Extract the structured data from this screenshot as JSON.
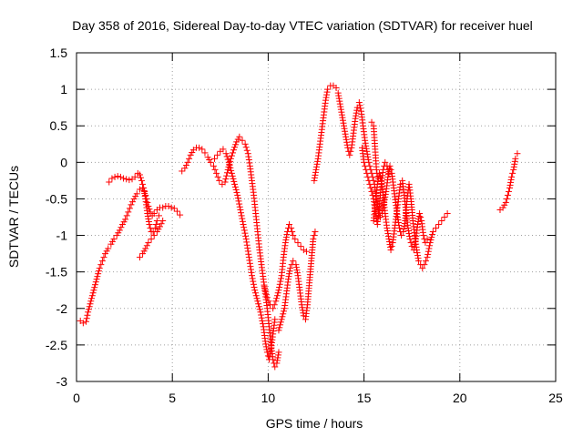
{
  "chart_data": {
    "type": "scatter",
    "title": "Day 358 of 2016, Sidereal Day-to-day VTEC variation (SDTVAR) for receiver huel",
    "xlabel": "GPS time / hours",
    "ylabel": "SDTVAR / TECUs",
    "xlim": [
      0,
      25
    ],
    "ylim": [
      -3,
      1.5
    ],
    "x_ticks": [
      0,
      5,
      10,
      15,
      20,
      25
    ],
    "x_tick_labels": [
      "0",
      "5",
      "10",
      "15",
      "20",
      "25"
    ],
    "y_ticks": [
      -3,
      -2.5,
      -2,
      -1.5,
      -1,
      -0.5,
      0,
      0.5,
      1,
      1.5
    ],
    "y_tick_labels": [
      "-3",
      "-2.5",
      "-2",
      "-1.5",
      "-1",
      "-0.5",
      "0",
      "0.5",
      "1",
      "1.5"
    ],
    "grid": true,
    "marker": "+",
    "color": "#ff0000",
    "series": [
      {
        "points": [
          [
            0.2,
            -2.17
          ],
          [
            0.35,
            -2.2
          ],
          [
            0.5,
            -2.18
          ],
          [
            0.6,
            -2.05
          ],
          [
            0.75,
            -1.9
          ],
          [
            0.9,
            -1.75
          ],
          [
            1.05,
            -1.6
          ],
          [
            1.2,
            -1.45
          ],
          [
            1.35,
            -1.35
          ],
          [
            1.5,
            -1.25
          ],
          [
            1.65,
            -1.18
          ],
          [
            1.8,
            -1.12
          ],
          [
            1.95,
            -1.05
          ],
          [
            2.1,
            -1.0
          ],
          [
            2.25,
            -0.93
          ],
          [
            2.4,
            -0.85
          ],
          [
            2.55,
            -0.78
          ],
          [
            2.7,
            -0.68
          ],
          [
            2.85,
            -0.58
          ],
          [
            3.0,
            -0.5
          ],
          [
            3.15,
            -0.43
          ],
          [
            3.3,
            -0.37
          ],
          [
            3.45,
            -0.35
          ],
          [
            3.55,
            -0.4
          ],
          [
            3.65,
            -0.5
          ],
          [
            3.75,
            -0.6
          ],
          [
            3.85,
            -0.68
          ],
          [
            3.95,
            -0.73
          ],
          [
            4.05,
            -0.7
          ],
          [
            4.2,
            -0.65
          ],
          [
            4.35,
            -0.62
          ],
          [
            4.5,
            -0.62
          ],
          [
            4.65,
            -0.6
          ],
          [
            4.8,
            -0.6
          ],
          [
            4.95,
            -0.62
          ],
          [
            5.1,
            -0.63
          ],
          [
            5.25,
            -0.67
          ],
          [
            5.4,
            -0.72
          ]
        ]
      },
      {
        "points": [
          [
            1.7,
            -0.27
          ],
          [
            1.85,
            -0.22
          ],
          [
            2.0,
            -0.2
          ],
          [
            2.15,
            -0.19
          ],
          [
            2.3,
            -0.2
          ],
          [
            2.45,
            -0.22
          ],
          [
            2.6,
            -0.23
          ],
          [
            2.75,
            -0.24
          ],
          [
            2.9,
            -0.23
          ],
          [
            3.05,
            -0.2
          ],
          [
            3.2,
            -0.15
          ],
          [
            3.3,
            -0.17
          ],
          [
            3.4,
            -0.25
          ],
          [
            3.5,
            -0.35
          ],
          [
            3.6,
            -0.5
          ],
          [
            3.7,
            -0.7
          ],
          [
            3.8,
            -0.85
          ],
          [
            3.9,
            -0.95
          ],
          [
            4.0,
            -0.95
          ],
          [
            4.1,
            -0.9
          ],
          [
            4.2,
            -0.8
          ],
          [
            4.3,
            -0.73
          ]
        ]
      },
      {
        "points": [
          [
            3.3,
            -1.3
          ],
          [
            3.45,
            -1.25
          ],
          [
            3.6,
            -1.18
          ],
          [
            3.75,
            -1.1
          ],
          [
            3.9,
            -1.05
          ],
          [
            4.05,
            -1.0
          ],
          [
            4.2,
            -0.95
          ],
          [
            4.35,
            -0.88
          ],
          [
            4.5,
            -0.8
          ]
        ]
      },
      {
        "points": [
          [
            5.5,
            -0.12
          ],
          [
            5.65,
            -0.08
          ],
          [
            5.8,
            0.0
          ],
          [
            5.95,
            0.1
          ],
          [
            6.1,
            0.17
          ],
          [
            6.25,
            0.2
          ],
          [
            6.4,
            0.2
          ],
          [
            6.55,
            0.18
          ],
          [
            6.7,
            0.13
          ],
          [
            6.85,
            0.07
          ],
          [
            7.0,
            0.0
          ],
          [
            7.15,
            -0.05
          ],
          [
            7.3,
            -0.15
          ],
          [
            7.45,
            -0.25
          ],
          [
            7.6,
            -0.3
          ],
          [
            7.75,
            -0.27
          ],
          [
            7.9,
            -0.1
          ],
          [
            8.05,
            0.05
          ],
          [
            8.2,
            0.17
          ],
          [
            8.35,
            0.28
          ],
          [
            8.5,
            0.35
          ],
          [
            8.65,
            0.3
          ],
          [
            8.8,
            0.25
          ],
          [
            8.95,
            0.12
          ],
          [
            9.05,
            -0.05
          ],
          [
            9.15,
            -0.25
          ],
          [
            9.25,
            -0.45
          ],
          [
            9.35,
            -0.7
          ],
          [
            9.45,
            -0.95
          ],
          [
            9.55,
            -1.2
          ],
          [
            9.65,
            -1.4
          ],
          [
            9.75,
            -1.6
          ],
          [
            9.85,
            -1.8
          ],
          [
            9.95,
            -2.0
          ],
          [
            10.05,
            -2.25
          ],
          [
            10.15,
            -2.5
          ],
          [
            10.25,
            -2.7
          ],
          [
            10.35,
            -2.8
          ],
          [
            10.45,
            -2.75
          ],
          [
            10.55,
            -2.6
          ]
        ]
      },
      {
        "points": [
          [
            7.2,
            0.05
          ],
          [
            7.35,
            0.1
          ],
          [
            7.5,
            0.15
          ],
          [
            7.65,
            0.18
          ],
          [
            7.8,
            0.12
          ],
          [
            7.95,
            0.0
          ],
          [
            8.1,
            -0.15
          ],
          [
            8.25,
            -0.3
          ],
          [
            8.4,
            -0.45
          ],
          [
            8.55,
            -0.65
          ],
          [
            8.7,
            -0.85
          ],
          [
            8.85,
            -1.05
          ],
          [
            9.0,
            -1.3
          ],
          [
            9.15,
            -1.55
          ],
          [
            9.3,
            -1.75
          ],
          [
            9.45,
            -1.9
          ],
          [
            9.6,
            -2.05
          ],
          [
            9.75,
            -2.25
          ],
          [
            9.85,
            -2.45
          ],
          [
            9.95,
            -2.6
          ],
          [
            10.05,
            -2.7
          ],
          [
            10.15,
            -2.55
          ],
          [
            10.25,
            -2.35
          ],
          [
            10.35,
            -2.15
          ]
        ]
      },
      {
        "points": [
          [
            9.8,
            -1.7
          ],
          [
            9.95,
            -1.85
          ],
          [
            10.1,
            -1.95
          ],
          [
            10.25,
            -2.0
          ],
          [
            10.4,
            -1.9
          ],
          [
            10.55,
            -1.75
          ],
          [
            10.7,
            -1.55
          ],
          [
            10.8,
            -1.3
          ],
          [
            10.9,
            -1.1
          ],
          [
            11.0,
            -0.95
          ],
          [
            11.1,
            -0.85
          ],
          [
            11.2,
            -0.9
          ],
          [
            11.3,
            -1.0
          ],
          [
            11.4,
            -1.05
          ],
          [
            11.55,
            -1.1
          ],
          [
            11.7,
            -1.15
          ],
          [
            11.85,
            -1.2
          ],
          [
            12.0,
            -1.22
          ]
        ]
      },
      {
        "points": [
          [
            10.55,
            -2.3
          ],
          [
            10.7,
            -2.15
          ],
          [
            10.85,
            -2.0
          ],
          [
            10.95,
            -1.8
          ],
          [
            11.05,
            -1.6
          ],
          [
            11.15,
            -1.45
          ],
          [
            11.3,
            -1.35
          ],
          [
            11.45,
            -1.4
          ],
          [
            11.55,
            -1.55
          ],
          [
            11.65,
            -1.75
          ],
          [
            11.75,
            -1.95
          ],
          [
            11.85,
            -2.1
          ],
          [
            11.95,
            -2.15
          ],
          [
            12.05,
            -1.95
          ],
          [
            12.15,
            -1.65
          ],
          [
            12.25,
            -1.35
          ],
          [
            12.35,
            -1.05
          ],
          [
            12.45,
            -0.95
          ]
        ]
      },
      {
        "points": [
          [
            12.4,
            -0.25
          ],
          [
            12.5,
            -0.1
          ],
          [
            12.6,
            0.05
          ],
          [
            12.7,
            0.25
          ],
          [
            12.8,
            0.45
          ],
          [
            12.9,
            0.65
          ],
          [
            13.0,
            0.85
          ],
          [
            13.1,
            1.0
          ],
          [
            13.25,
            1.05
          ],
          [
            13.4,
            1.05
          ],
          [
            13.55,
            1.02
          ],
          [
            13.65,
            0.95
          ],
          [
            13.75,
            0.8
          ],
          [
            13.85,
            0.65
          ],
          [
            13.95,
            0.5
          ],
          [
            14.05,
            0.35
          ],
          [
            14.15,
            0.2
          ],
          [
            14.25,
            0.1
          ],
          [
            14.35,
            0.2
          ],
          [
            14.45,
            0.4
          ],
          [
            14.55,
            0.6
          ],
          [
            14.65,
            0.75
          ],
          [
            14.75,
            0.82
          ],
          [
            14.85,
            0.7
          ],
          [
            14.95,
            0.5
          ],
          [
            15.05,
            0.3
          ],
          [
            15.15,
            0.15
          ],
          [
            15.25,
            0.0
          ],
          [
            15.35,
            -0.1
          ],
          [
            15.45,
            -0.2
          ],
          [
            15.55,
            -0.3
          ],
          [
            15.65,
            -0.5
          ],
          [
            15.75,
            -0.65
          ],
          [
            15.85,
            -0.75
          ],
          [
            15.95,
            -0.7
          ],
          [
            16.05,
            -0.55
          ],
          [
            16.15,
            -0.4
          ],
          [
            16.25,
            -0.2
          ],
          [
            16.35,
            -0.05
          ],
          [
            16.45,
            -0.15
          ],
          [
            16.55,
            -0.35
          ],
          [
            16.65,
            -0.55
          ],
          [
            16.75,
            -0.75
          ],
          [
            16.85,
            -0.9
          ],
          [
            16.95,
            -1.0
          ],
          [
            17.05,
            -0.95
          ],
          [
            17.15,
            -0.8
          ],
          [
            17.25,
            -0.5
          ],
          [
            17.35,
            -0.3
          ],
          [
            17.45,
            -0.5
          ],
          [
            17.55,
            -0.8
          ],
          [
            17.65,
            -1.0
          ],
          [
            17.75,
            -1.2
          ],
          [
            17.85,
            -1.35
          ],
          [
            17.95,
            -1.4
          ],
          [
            18.05,
            -1.45
          ],
          [
            18.15,
            -1.4
          ],
          [
            18.3,
            -1.3
          ],
          [
            18.45,
            -1.1
          ],
          [
            18.6,
            -0.95
          ],
          [
            18.75,
            -0.9
          ],
          [
            18.9,
            -0.85
          ],
          [
            19.05,
            -0.8
          ],
          [
            19.2,
            -0.75
          ],
          [
            19.35,
            -0.7
          ]
        ]
      },
      {
        "points": [
          [
            15.5,
            -0.8
          ],
          [
            15.6,
            -0.55
          ],
          [
            15.7,
            -0.3
          ],
          [
            15.8,
            -0.15
          ],
          [
            15.9,
            -0.25
          ],
          [
            16.0,
            -0.45
          ],
          [
            16.1,
            -0.7
          ],
          [
            16.2,
            -0.9
          ],
          [
            16.3,
            -1.05
          ],
          [
            16.4,
            -1.2
          ],
          [
            16.5,
            -1.1
          ],
          [
            16.6,
            -0.9
          ],
          [
            16.7,
            -0.7
          ],
          [
            16.8,
            -0.5
          ],
          [
            16.9,
            -0.3
          ],
          [
            17.0,
            -0.25
          ],
          [
            17.1,
            -0.45
          ],
          [
            17.2,
            -0.7
          ],
          [
            17.3,
            -0.9
          ],
          [
            17.4,
            -1.05
          ],
          [
            17.5,
            -1.15
          ],
          [
            17.6,
            -1.2
          ],
          [
            17.7,
            -1.05
          ],
          [
            17.8,
            -0.85
          ],
          [
            17.9,
            -0.7
          ],
          [
            18.0,
            -0.8
          ],
          [
            18.1,
            -1.0
          ],
          [
            18.2,
            -1.1
          ],
          [
            18.3,
            -1.05
          ]
        ]
      },
      {
        "points": [
          [
            14.9,
            0.2
          ],
          [
            15.0,
            0.0
          ],
          [
            15.1,
            -0.1
          ],
          [
            15.2,
            -0.2
          ],
          [
            15.3,
            -0.3
          ],
          [
            15.4,
            -0.4
          ],
          [
            15.5,
            -0.5
          ],
          [
            15.6,
            -0.7
          ],
          [
            15.7,
            -0.85
          ],
          [
            15.8,
            -0.6
          ],
          [
            15.9,
            -0.3
          ],
          [
            16.0,
            -0.1
          ],
          [
            16.1,
            0.0
          ],
          [
            16.2,
            -0.05
          ],
          [
            16.3,
            -0.15
          ]
        ]
      },
      {
        "points": [
          [
            15.4,
            0.55
          ],
          [
            15.5,
            0.5
          ],
          [
            15.55,
            0.3
          ],
          [
            15.6,
            0.1
          ],
          [
            15.65,
            -0.1
          ],
          [
            15.7,
            -0.2
          ]
        ]
      },
      {
        "points": [
          [
            22.1,
            -0.65
          ],
          [
            22.25,
            -0.62
          ],
          [
            22.4,
            -0.55
          ],
          [
            22.5,
            -0.45
          ],
          [
            22.6,
            -0.35
          ],
          [
            22.7,
            -0.2
          ],
          [
            22.8,
            -0.1
          ],
          [
            22.9,
            0.05
          ],
          [
            23.0,
            0.12
          ]
        ]
      }
    ]
  }
}
